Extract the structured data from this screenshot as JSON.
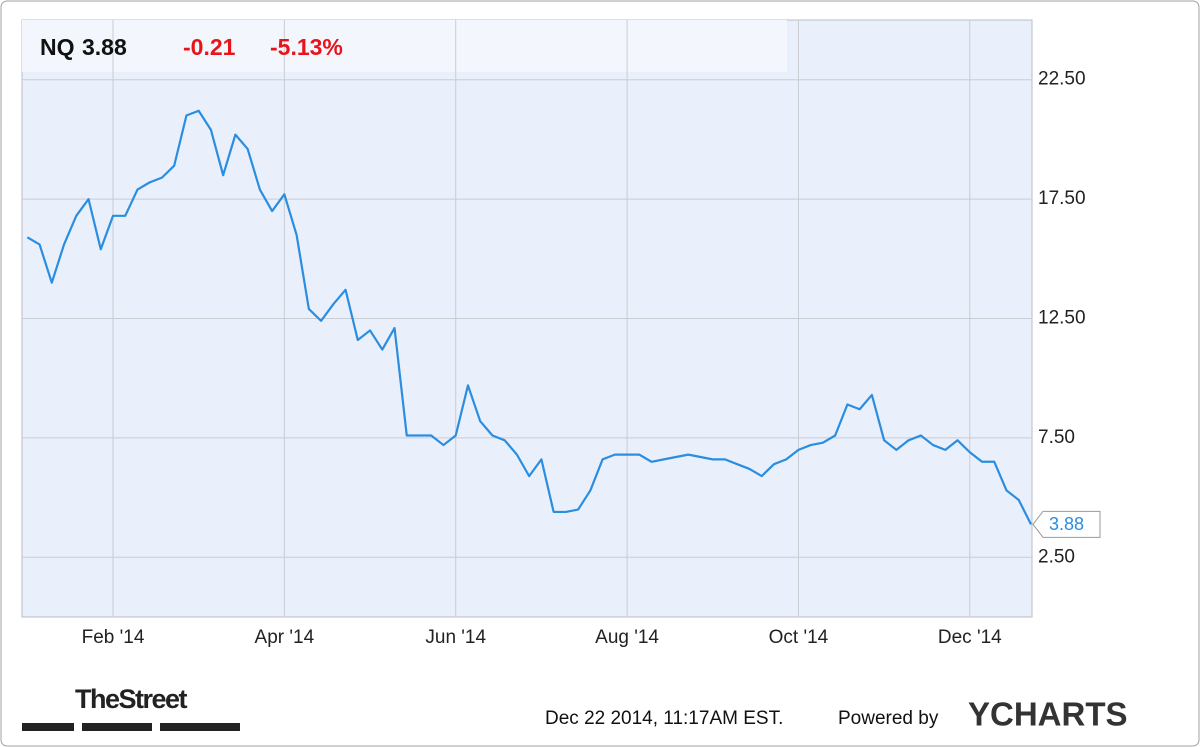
{
  "chart_data": {
    "type": "line",
    "header": {
      "ticker": "NQ",
      "change": "-0.21",
      "change_pct": "-5.13%"
    },
    "categories": [
      null,
      null,
      null,
      null,
      null,
      null,
      null,
      "Feb '14",
      null,
      null,
      null,
      null,
      null,
      null,
      null,
      null,
      null,
      null,
      null,
      null,
      null,
      "Apr '14",
      null,
      null,
      null,
      null,
      null,
      null,
      null,
      null,
      null,
      null,
      null,
      null,
      null,
      "Jun '14",
      null,
      null,
      null,
      null,
      null,
      null,
      null,
      null,
      null,
      null,
      null,
      null,
      null,
      "Aug '14",
      null,
      null,
      null,
      null,
      null,
      null,
      null,
      null,
      null,
      null,
      null,
      null,
      null,
      "Oct '14",
      null,
      null,
      null,
      null,
      null,
      null,
      null,
      null,
      null,
      null,
      null,
      null,
      null,
      "Dec '14",
      null,
      null,
      null,
      null,
      null
    ],
    "series": [
      {
        "color": "#2b8de0",
        "values": [
          15.9,
          15.6,
          14.0,
          15.6,
          16.8,
          17.5,
          15.4,
          16.8,
          16.8,
          17.9,
          18.2,
          18.4,
          18.9,
          21.0,
          21.2,
          20.4,
          18.5,
          20.2,
          19.6,
          17.9,
          17.0,
          17.7,
          16.0,
          12.9,
          12.4,
          13.1,
          13.7,
          11.6,
          12.0,
          11.2,
          12.1,
          7.6,
          7.6,
          7.6,
          7.2,
          7.6,
          9.7,
          8.2,
          7.6,
          7.4,
          6.8,
          5.9,
          6.6,
          4.4,
          4.4,
          4.5,
          5.3,
          6.6,
          6.8,
          6.8,
          6.8,
          6.5,
          6.6,
          6.7,
          6.8,
          6.7,
          6.6,
          6.6,
          6.4,
          6.2,
          5.9,
          6.4,
          6.6,
          7.0,
          7.2,
          7.3,
          7.6,
          8.9,
          8.7,
          9.3,
          7.4,
          7.0,
          7.4,
          7.6,
          7.2,
          7.0,
          7.4,
          6.9,
          6.5,
          6.5,
          5.3,
          4.9,
          3.88
        ]
      }
    ],
    "ylim": [
      0,
      25
    ],
    "yticks": [
      {
        "value": 2.5,
        "label": "2.50"
      },
      {
        "value": 7.5,
        "label": "7.50"
      },
      {
        "value": 12.5,
        "label": "12.50"
      },
      {
        "value": 17.5,
        "label": "17.50"
      },
      {
        "value": 22.5,
        "label": "22.50"
      }
    ],
    "grid": true,
    "footer": {
      "source": "TheStreet",
      "timestamp": "Dec 22 2014, 11:17AM EST.",
      "powered_by": "Powered by",
      "brand": "YCHARTS"
    }
  }
}
